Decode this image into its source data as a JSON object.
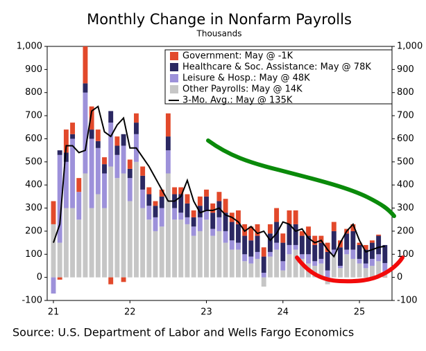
{
  "chart_data": {
    "type": "bar",
    "title": "Monthly Change in Nonfarm Payrolls",
    "subtitle": "Thousands",
    "source": "Source: U.S. Department of Labor and Wells Fargo Economics",
    "stacked": true,
    "categories": [
      "21",
      null,
      null,
      null,
      null,
      null,
      null,
      null,
      null,
      null,
      null,
      null,
      "22",
      null,
      null,
      null,
      null,
      null,
      null,
      null,
      null,
      null,
      null,
      null,
      "23",
      null,
      null,
      null,
      null,
      null,
      null,
      null,
      null,
      null,
      null,
      null,
      "24",
      null,
      null,
      null,
      null,
      null,
      null,
      null,
      null,
      null,
      null,
      null,
      "25",
      null,
      null,
      null,
      null
    ],
    "series": [
      {
        "name": "Government: May @ -1K",
        "color": "#e2492b",
        "values": [
          100,
          -10,
          100,
          50,
          60,
          160,
          100,
          50,
          30,
          -30,
          40,
          -20,
          40,
          40,
          40,
          30,
          20,
          30,
          100,
          30,
          30,
          40,
          30,
          40,
          30,
          40,
          40,
          60,
          40,
          60,
          50,
          60,
          50,
          40,
          40,
          60,
          40,
          60,
          60,
          20,
          40,
          40,
          30,
          40,
          40,
          30,
          20,
          30,
          10,
          20,
          10,
          5,
          -1
        ]
      },
      {
        "name": "Healthcare & Soc. Assistance: May @ 78K",
        "color": "#2b2862",
        "values": [
          0,
          20,
          40,
          20,
          0,
          40,
          40,
          30,
          40,
          50,
          40,
          50,
          40,
          50,
          60,
          50,
          50,
          50,
          60,
          60,
          80,
          60,
          40,
          50,
          60,
          70,
          70,
          80,
          80,
          80,
          80,
          70,
          70,
          70,
          80,
          90,
          80,
          90,
          90,
          80,
          80,
          70,
          70,
          80,
          80,
          80,
          70,
          80,
          60,
          60,
          70,
          80,
          78
        ]
      },
      {
        "name": "Leisure & Hosp.: May @ 48K",
        "color": "#9d91da",
        "values": [
          -70,
          380,
          200,
          300,
          120,
          350,
          300,
          200,
          150,
          190,
          100,
          120,
          100,
          120,
          80,
          60,
          60,
          80,
          100,
          50,
          30,
          30,
          40,
          60,
          40,
          30,
          60,
          50,
          40,
          30,
          30,
          30,
          30,
          20,
          20,
          30,
          40,
          40,
          20,
          20,
          40,
          20,
          20,
          30,
          20,
          10,
          20,
          40,
          20,
          20,
          30,
          30,
          48
        ]
      },
      {
        "name": "Other Payrolls: May @ 14K",
        "color": "#c6c6c6",
        "values": [
          230,
          150,
          300,
          300,
          250,
          450,
          300,
          360,
          300,
          480,
          430,
          450,
          330,
          500,
          300,
          250,
          200,
          220,
          450,
          250,
          250,
          230,
          180,
          200,
          250,
          180,
          200,
          150,
          120,
          120,
          70,
          60,
          80,
          -40,
          90,
          120,
          30,
          100,
          120,
          80,
          60,
          50,
          60,
          -30,
          100,
          40,
          100,
          80,
          60,
          40,
          50,
          70,
          14
        ]
      },
      {
        "name": "3-Mo. Avg.: May @ 135K",
        "type": "line",
        "color": "#000000",
        "values": [
          150,
          230,
          570,
          570,
          540,
          550,
          720,
          740,
          630,
          610,
          660,
          690,
          560,
          560,
          520,
          480,
          430,
          380,
          330,
          330,
          350,
          420,
          330,
          280,
          290,
          290,
          300,
          270,
          260,
          240,
          200,
          220,
          190,
          200,
          160,
          190,
          240,
          230,
          200,
          210,
          170,
          150,
          160,
          120,
          90,
          150,
          200,
          230,
          160,
          110,
          120,
          130,
          135
        ]
      }
    ],
    "ylim": [
      -100,
      1000
    ],
    "yticks": [
      -100,
      0,
      100,
      200,
      300,
      400,
      500,
      600,
      700,
      800,
      900,
      {
        "value": 1000,
        "label": "1,000"
      }
    ]
  }
}
